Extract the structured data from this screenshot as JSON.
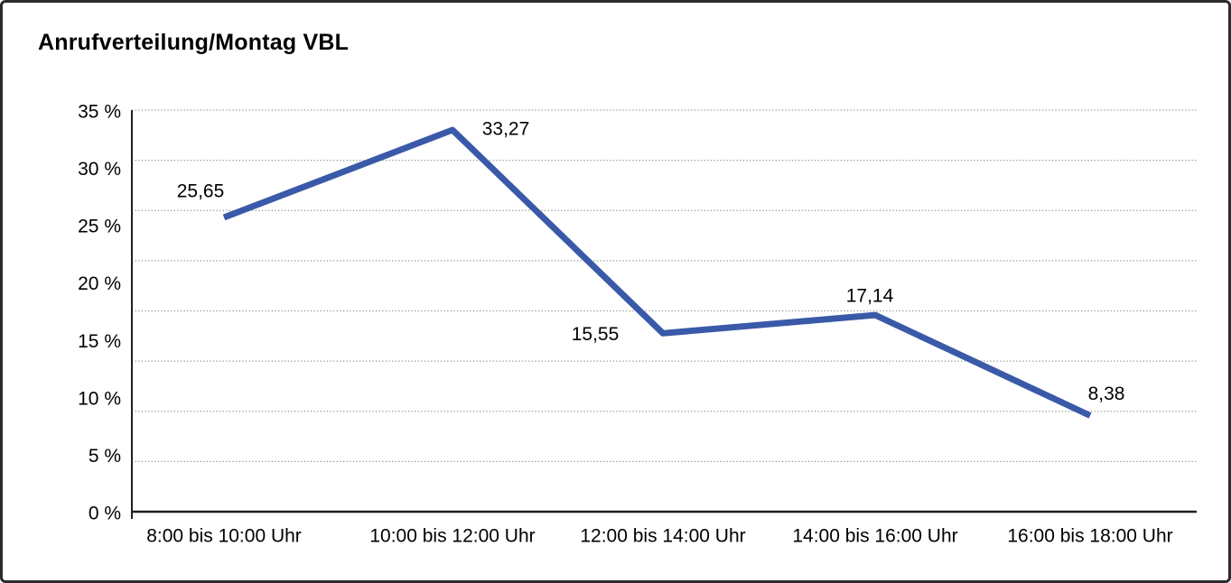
{
  "title": "Anrufverteilung/Montag VBL",
  "chart_data": {
    "type": "line",
    "title": "Anrufverteilung/Montag VBL",
    "categories": [
      "8:00 bis 10:00 Uhr",
      "10:00 bis 12:00 Uhr",
      "12:00 bis 14:00 Uhr",
      "14:00 bis 16:00 Uhr",
      "16:00 bis 18:00 Uhr"
    ],
    "series": [
      {
        "name": "Anrufverteilung Montag VBL",
        "values": [
          25.65,
          33.27,
          15.55,
          17.14,
          8.38
        ]
      }
    ],
    "value_labels": [
      "25,65",
      "33,27",
      "15,55",
      "17,14",
      "8,38"
    ],
    "y_axis": {
      "tick_labels": [
        "35 %",
        "30 %",
        "25 %",
        "20 %",
        "15 %",
        "10 %",
        "5 %",
        "0 %"
      ],
      "tick_values": [
        35,
        30,
        25,
        20,
        15,
        10,
        5,
        0
      ],
      "range": [
        0,
        35
      ],
      "unit": "%"
    },
    "xlabel": "",
    "ylabel": "",
    "legend": "none",
    "grid": {
      "horizontal": true,
      "style": "dotted",
      "divisions": 8
    },
    "line_color": "#3A59A8",
    "grid_color": "#8f8f8f",
    "axis_color": "#1f1f1f",
    "text_color": "#000000",
    "background": "#FFFFFF"
  }
}
